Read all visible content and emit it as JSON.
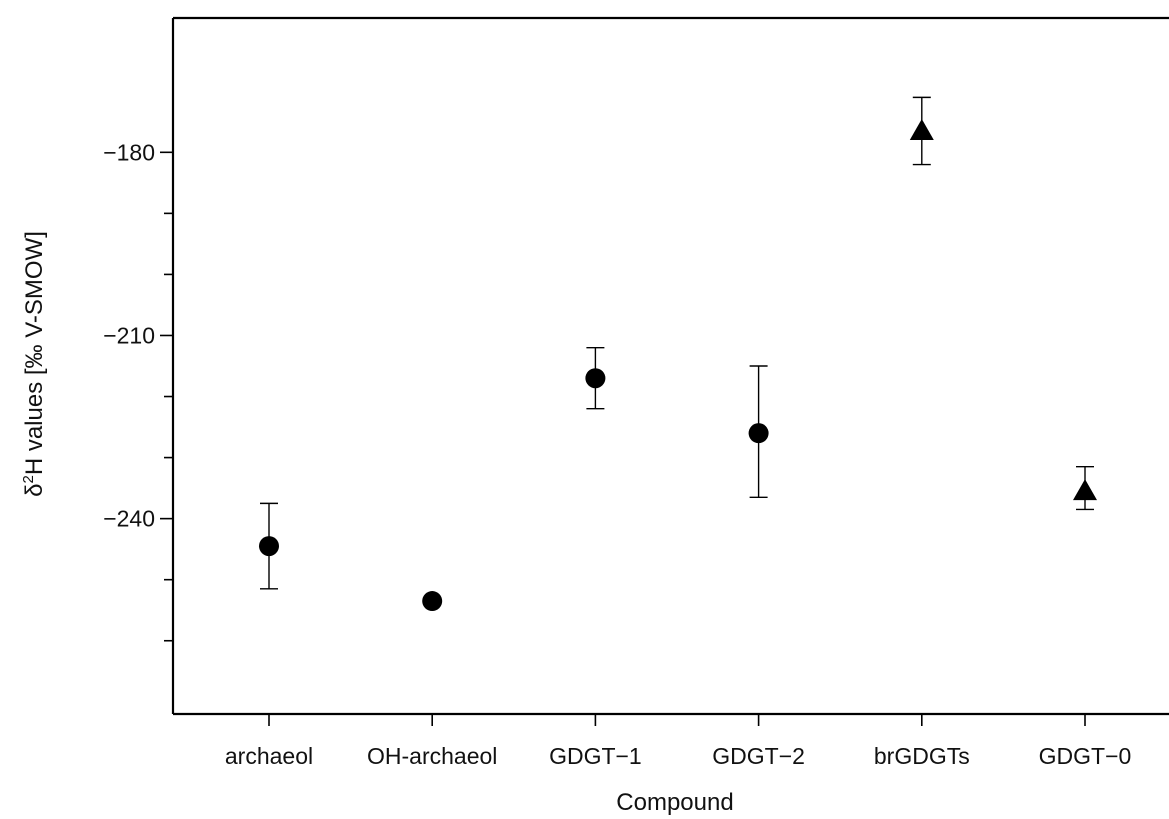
{
  "chart_data": {
    "type": "scatter",
    "title": "",
    "xlabel": "Compound",
    "ylabel_prefix": "δ",
    "ylabel_sup": "2",
    "ylabel_rest": "H values [‰  V-SMOW]",
    "categories": [
      "archaeol",
      "OH-archaeol",
      "GDGT−1",
      "GDGT−2",
      "brGDGTs",
      "GDGT−0"
    ],
    "ylim": [
      -272,
      -158
    ],
    "y_ticks": [
      -180,
      -190,
      -200,
      -210,
      -220,
      -230,
      -240,
      -250,
      -260
    ],
    "y_tick_labels": [
      {
        "value": -180,
        "label": "−180"
      },
      {
        "value": -210,
        "label": "−210"
      },
      {
        "value": -240,
        "label": "−240"
      }
    ],
    "points": [
      {
        "category": "archaeol",
        "y": -244.5,
        "err_low": -251.5,
        "err_high": -237.5,
        "marker": "circle"
      },
      {
        "category": "OH-archaeol",
        "y": -253.5,
        "marker": "circle"
      },
      {
        "category": "GDGT−1",
        "y": -217.0,
        "err_low": -222.0,
        "err_high": -212.0,
        "marker": "circle"
      },
      {
        "category": "GDGT−2",
        "y": -226.0,
        "err_low": -236.5,
        "err_high": -215.0,
        "marker": "circle"
      },
      {
        "category": "brGDGTs",
        "y": -176.5,
        "err_low": -182.0,
        "err_high": -171.0,
        "marker": "triangle"
      },
      {
        "category": "GDGT−0",
        "y": -235.5,
        "err_low": -238.5,
        "err_high": -231.5,
        "marker": "triangle"
      }
    ],
    "grid": false,
    "legend": "none"
  }
}
